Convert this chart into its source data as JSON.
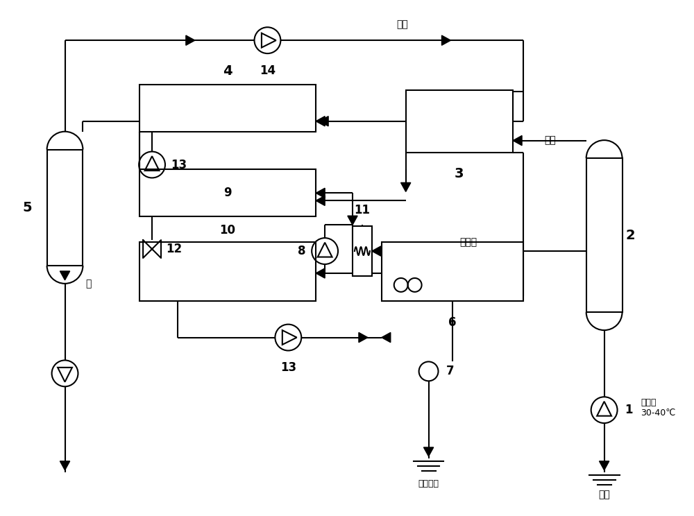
{
  "bg_color": "#ffffff",
  "line_color": "#000000",
  "line_width": 1.5,
  "fig_width": 10.0,
  "fig_height": 7.44,
  "labels": {
    "wu_shui": "污水",
    "you_shui": "油水",
    "tian_ran_qi": "天然气",
    "you": "油",
    "you_qi_shui": "油气水\n30-40℃",
    "wu_shui_pai_fang": "污水排放",
    "you_jing": "油井"
  }
}
